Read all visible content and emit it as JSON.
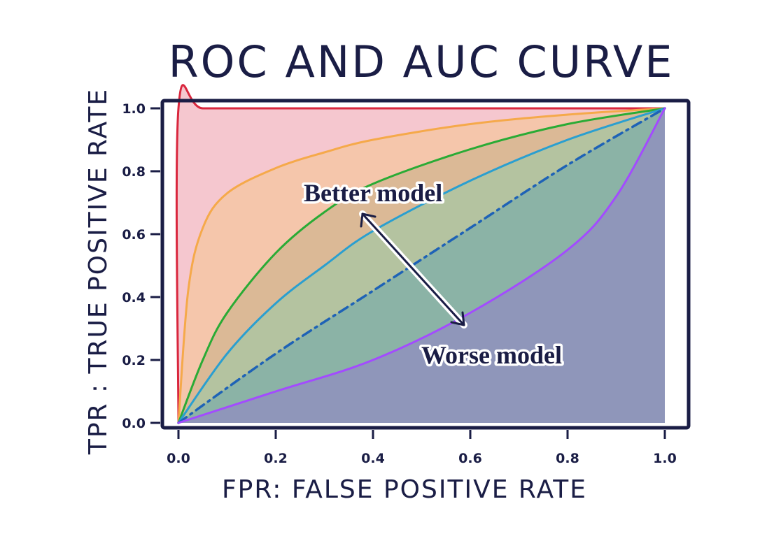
{
  "chart_data": {
    "type": "area",
    "title": "ROC AND AUC CURVE",
    "xlabel": "FPR: FALSE POSITIVE RATE",
    "ylabel": "TPR : TRUE POSITIVE RATE",
    "xlim": [
      0,
      1.0
    ],
    "ylim": [
      0,
      1.0
    ],
    "x_ticks": [
      "0.0",
      "0.2",
      "0.4",
      "0.6",
      "0.8",
      "1.0"
    ],
    "y_ticks": [
      "0.0",
      "0.2",
      "0.4",
      "0.6",
      "0.8",
      "1.0"
    ],
    "grid": false,
    "series": [
      {
        "color": "#d9263d",
        "fill": "#f5c7cf",
        "dashed": false,
        "x": [
          0,
          0.0,
          0.05,
          0.2,
          0.4,
          0.6,
          0.8,
          1.0
        ],
        "y": [
          0,
          1.0,
          1.0,
          1.0,
          1.0,
          1.0,
          1.0,
          1.0
        ]
      },
      {
        "color": "#f5a94a",
        "fill": "#f5c6ab",
        "dashed": false,
        "x": [
          0,
          0.02,
          0.05,
          0.1,
          0.2,
          0.3,
          0.4,
          0.6,
          0.8,
          1.0
        ],
        "y": [
          0,
          0.42,
          0.62,
          0.73,
          0.81,
          0.86,
          0.9,
          0.95,
          0.98,
          1.0
        ]
      },
      {
        "color": "#2aab35",
        "fill": "#dbb996",
        "dashed": false,
        "x": [
          0,
          0.05,
          0.1,
          0.2,
          0.3,
          0.4,
          0.6,
          0.8,
          1.0
        ],
        "y": [
          0,
          0.2,
          0.35,
          0.54,
          0.67,
          0.76,
          0.87,
          0.95,
          1.0
        ]
      },
      {
        "color": "#2a9fd0",
        "fill": "#b4c3a0",
        "dashed": false,
        "x": [
          0,
          0.1,
          0.2,
          0.3,
          0.4,
          0.6,
          0.8,
          1.0
        ],
        "y": [
          0,
          0.22,
          0.38,
          0.5,
          0.61,
          0.77,
          0.9,
          1.0
        ]
      },
      {
        "color": "#1e62b6",
        "fill": "#8bb3a6",
        "dashed": true,
        "x": [
          0,
          0.2,
          0.4,
          0.6,
          0.8,
          1.0
        ],
        "y": [
          0,
          0.22,
          0.42,
          0.62,
          0.82,
          1.0
        ]
      },
      {
        "color": "#a34bff",
        "fill": "#8f96ba",
        "dashed": false,
        "x": [
          0,
          0.2,
          0.4,
          0.6,
          0.8,
          0.9,
          1.0
        ],
        "y": [
          0,
          0.1,
          0.2,
          0.35,
          0.55,
          0.72,
          1.0
        ]
      }
    ],
    "annotations": [
      {
        "text": "Better model"
      },
      {
        "text": "Worse model"
      }
    ]
  }
}
